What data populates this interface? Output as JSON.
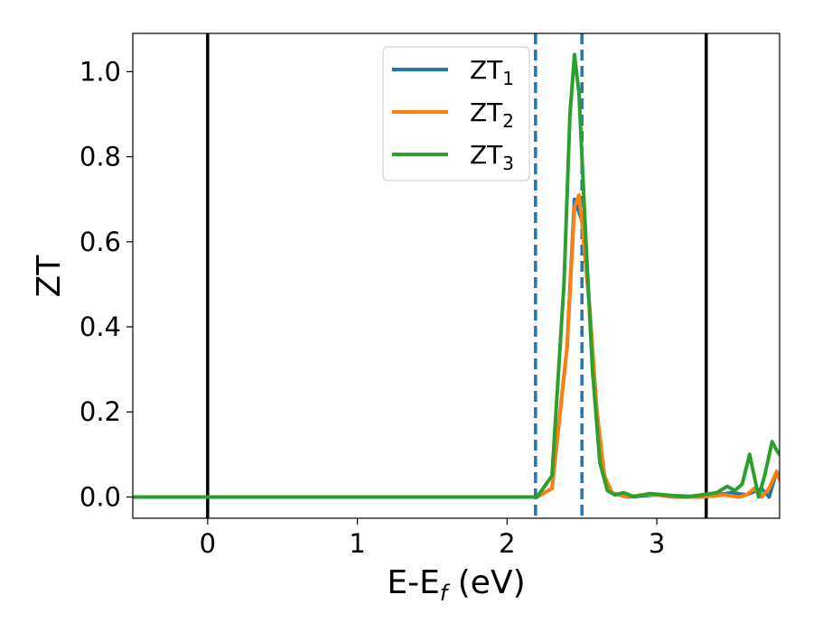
{
  "chart_data": {
    "type": "line",
    "title": "",
    "xlabel": {
      "main": "E-E",
      "sub": "f",
      "tail": " (eV)"
    },
    "ylabel": "ZT",
    "xlim": [
      -0.5,
      3.82
    ],
    "ylim": [
      -0.05,
      1.09
    ],
    "xticks": [
      0,
      1,
      2,
      3
    ],
    "xtick_labels": [
      "0",
      "1",
      "2",
      "3"
    ],
    "yticks": [
      0.0,
      0.2,
      0.4,
      0.6,
      0.8,
      1.0
    ],
    "ytick_labels": [
      "0.0",
      "0.2",
      "0.4",
      "0.6",
      "0.8",
      "1.0"
    ],
    "grid": false,
    "legend_position": "top-center",
    "vlines": [
      {
        "x": 0.0,
        "style": "solid",
        "color": "#000000"
      },
      {
        "x": 3.33,
        "style": "solid",
        "color": "#000000"
      },
      {
        "x": 2.19,
        "style": "dashed",
        "color": "#1f77b4"
      },
      {
        "x": 2.5,
        "style": "dashed",
        "color": "#1f77b4"
      }
    ],
    "series": [
      {
        "name": "ZT",
        "sub": "1",
        "color": "#1f77b4",
        "x": [
          -0.5,
          2.2,
          2.3,
          2.4,
          2.45,
          2.5,
          2.55,
          2.6,
          2.65,
          2.7,
          2.8,
          3.0,
          3.3,
          3.5,
          3.6,
          3.7,
          3.75,
          3.8,
          3.82
        ],
        "y": [
          0,
          0,
          0.02,
          0.35,
          0.7,
          0.65,
          0.45,
          0.2,
          0.05,
          0.01,
          0,
          0.005,
          0,
          0.01,
          0.005,
          0.02,
          0,
          0.06,
          0.05
        ]
      },
      {
        "name": "ZT",
        "sub": "2",
        "color": "#ff7f0e",
        "x": [
          -0.5,
          2.2,
          2.3,
          2.4,
          2.45,
          2.48,
          2.5,
          2.55,
          2.6,
          2.65,
          2.7,
          2.8,
          2.9,
          3.0,
          3.1,
          3.3,
          3.45,
          3.55,
          3.6,
          3.65,
          3.7,
          3.75,
          3.8,
          3.82
        ],
        "y": [
          0,
          0,
          0.02,
          0.35,
          0.68,
          0.71,
          0.65,
          0.45,
          0.2,
          0.05,
          0.01,
          0,
          0.005,
          0.005,
          0,
          0,
          0.005,
          0,
          0.005,
          0.02,
          0,
          0.02,
          0.06,
          0.04
        ]
      },
      {
        "name": "ZT",
        "sub": "3",
        "color": "#2ca02c",
        "x": [
          -0.5,
          2.2,
          2.3,
          2.38,
          2.42,
          2.45,
          2.48,
          2.52,
          2.57,
          2.62,
          2.67,
          2.72,
          2.78,
          2.85,
          2.95,
          3.05,
          3.2,
          3.3,
          3.4,
          3.47,
          3.52,
          3.57,
          3.62,
          3.65,
          3.68,
          3.72,
          3.77,
          3.8,
          3.82
        ],
        "y": [
          0,
          0,
          0.05,
          0.5,
          0.9,
          1.04,
          0.95,
          0.65,
          0.3,
          0.08,
          0.015,
          0.005,
          0.01,
          0,
          0.008,
          0.005,
          0,
          0.005,
          0.01,
          0.025,
          0.015,
          0.03,
          0.1,
          0.05,
          0,
          0.05,
          0.13,
          0.11,
          0.1
        ]
      }
    ]
  }
}
